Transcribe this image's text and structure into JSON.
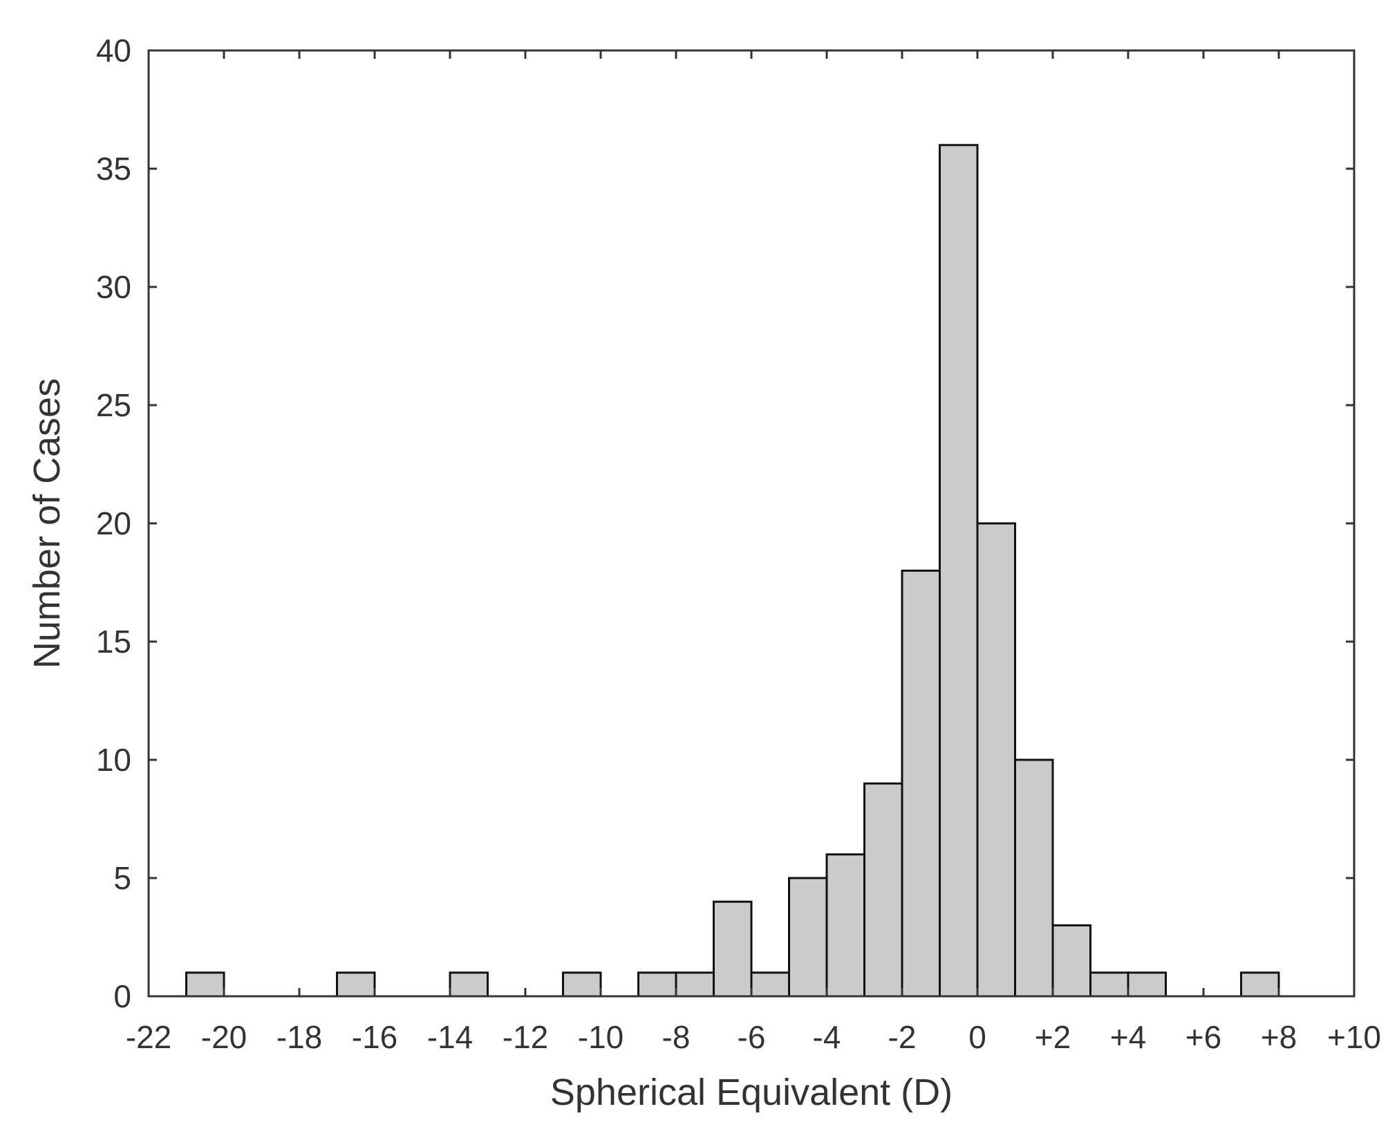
{
  "chart_data": {
    "type": "bar",
    "title": "",
    "xlabel": "Spherical Equivalent (D)",
    "ylabel": "Number of Cases",
    "xlim": [
      -22,
      10
    ],
    "ylim": [
      0,
      40
    ],
    "bin_width": 1,
    "bin_left_edges": [
      -21,
      -20,
      -19,
      -18,
      -17,
      -16,
      -15,
      -14,
      -13,
      -12,
      -11,
      -10,
      -9,
      -8,
      -7,
      -6,
      -5,
      -4,
      -3,
      -2,
      -1,
      0,
      1,
      2,
      3,
      4,
      5,
      6,
      7
    ],
    "values": [
      1,
      0,
      0,
      0,
      1,
      0,
      0,
      1,
      0,
      0,
      1,
      0,
      1,
      1,
      4,
      1,
      5,
      6,
      9,
      18,
      36,
      20,
      10,
      3,
      1,
      1,
      0,
      0,
      1
    ],
    "x_ticks": [
      -22,
      -20,
      -18,
      -16,
      -14,
      -12,
      -10,
      -8,
      -6,
      -4,
      -2,
      0,
      2,
      4,
      6,
      8,
      10
    ],
    "x_tick_labels": [
      "-22",
      "-20",
      "-18",
      "-16",
      "-14",
      "-12",
      "-10",
      "-8",
      "-6",
      "-4",
      "-2",
      "0",
      "+2",
      "+4",
      "+6",
      "+8",
      "+10"
    ],
    "y_ticks": [
      0,
      5,
      10,
      15,
      20,
      25,
      30,
      35,
      40
    ],
    "y_tick_labels": [
      "0",
      "5",
      "10",
      "15",
      "20",
      "25",
      "30",
      "35",
      "40"
    ],
    "grid": false,
    "legend": "none",
    "colors": {
      "bar_fill": "#cbcbcb",
      "bar_edge": "#111111",
      "axis": "#333333"
    }
  }
}
